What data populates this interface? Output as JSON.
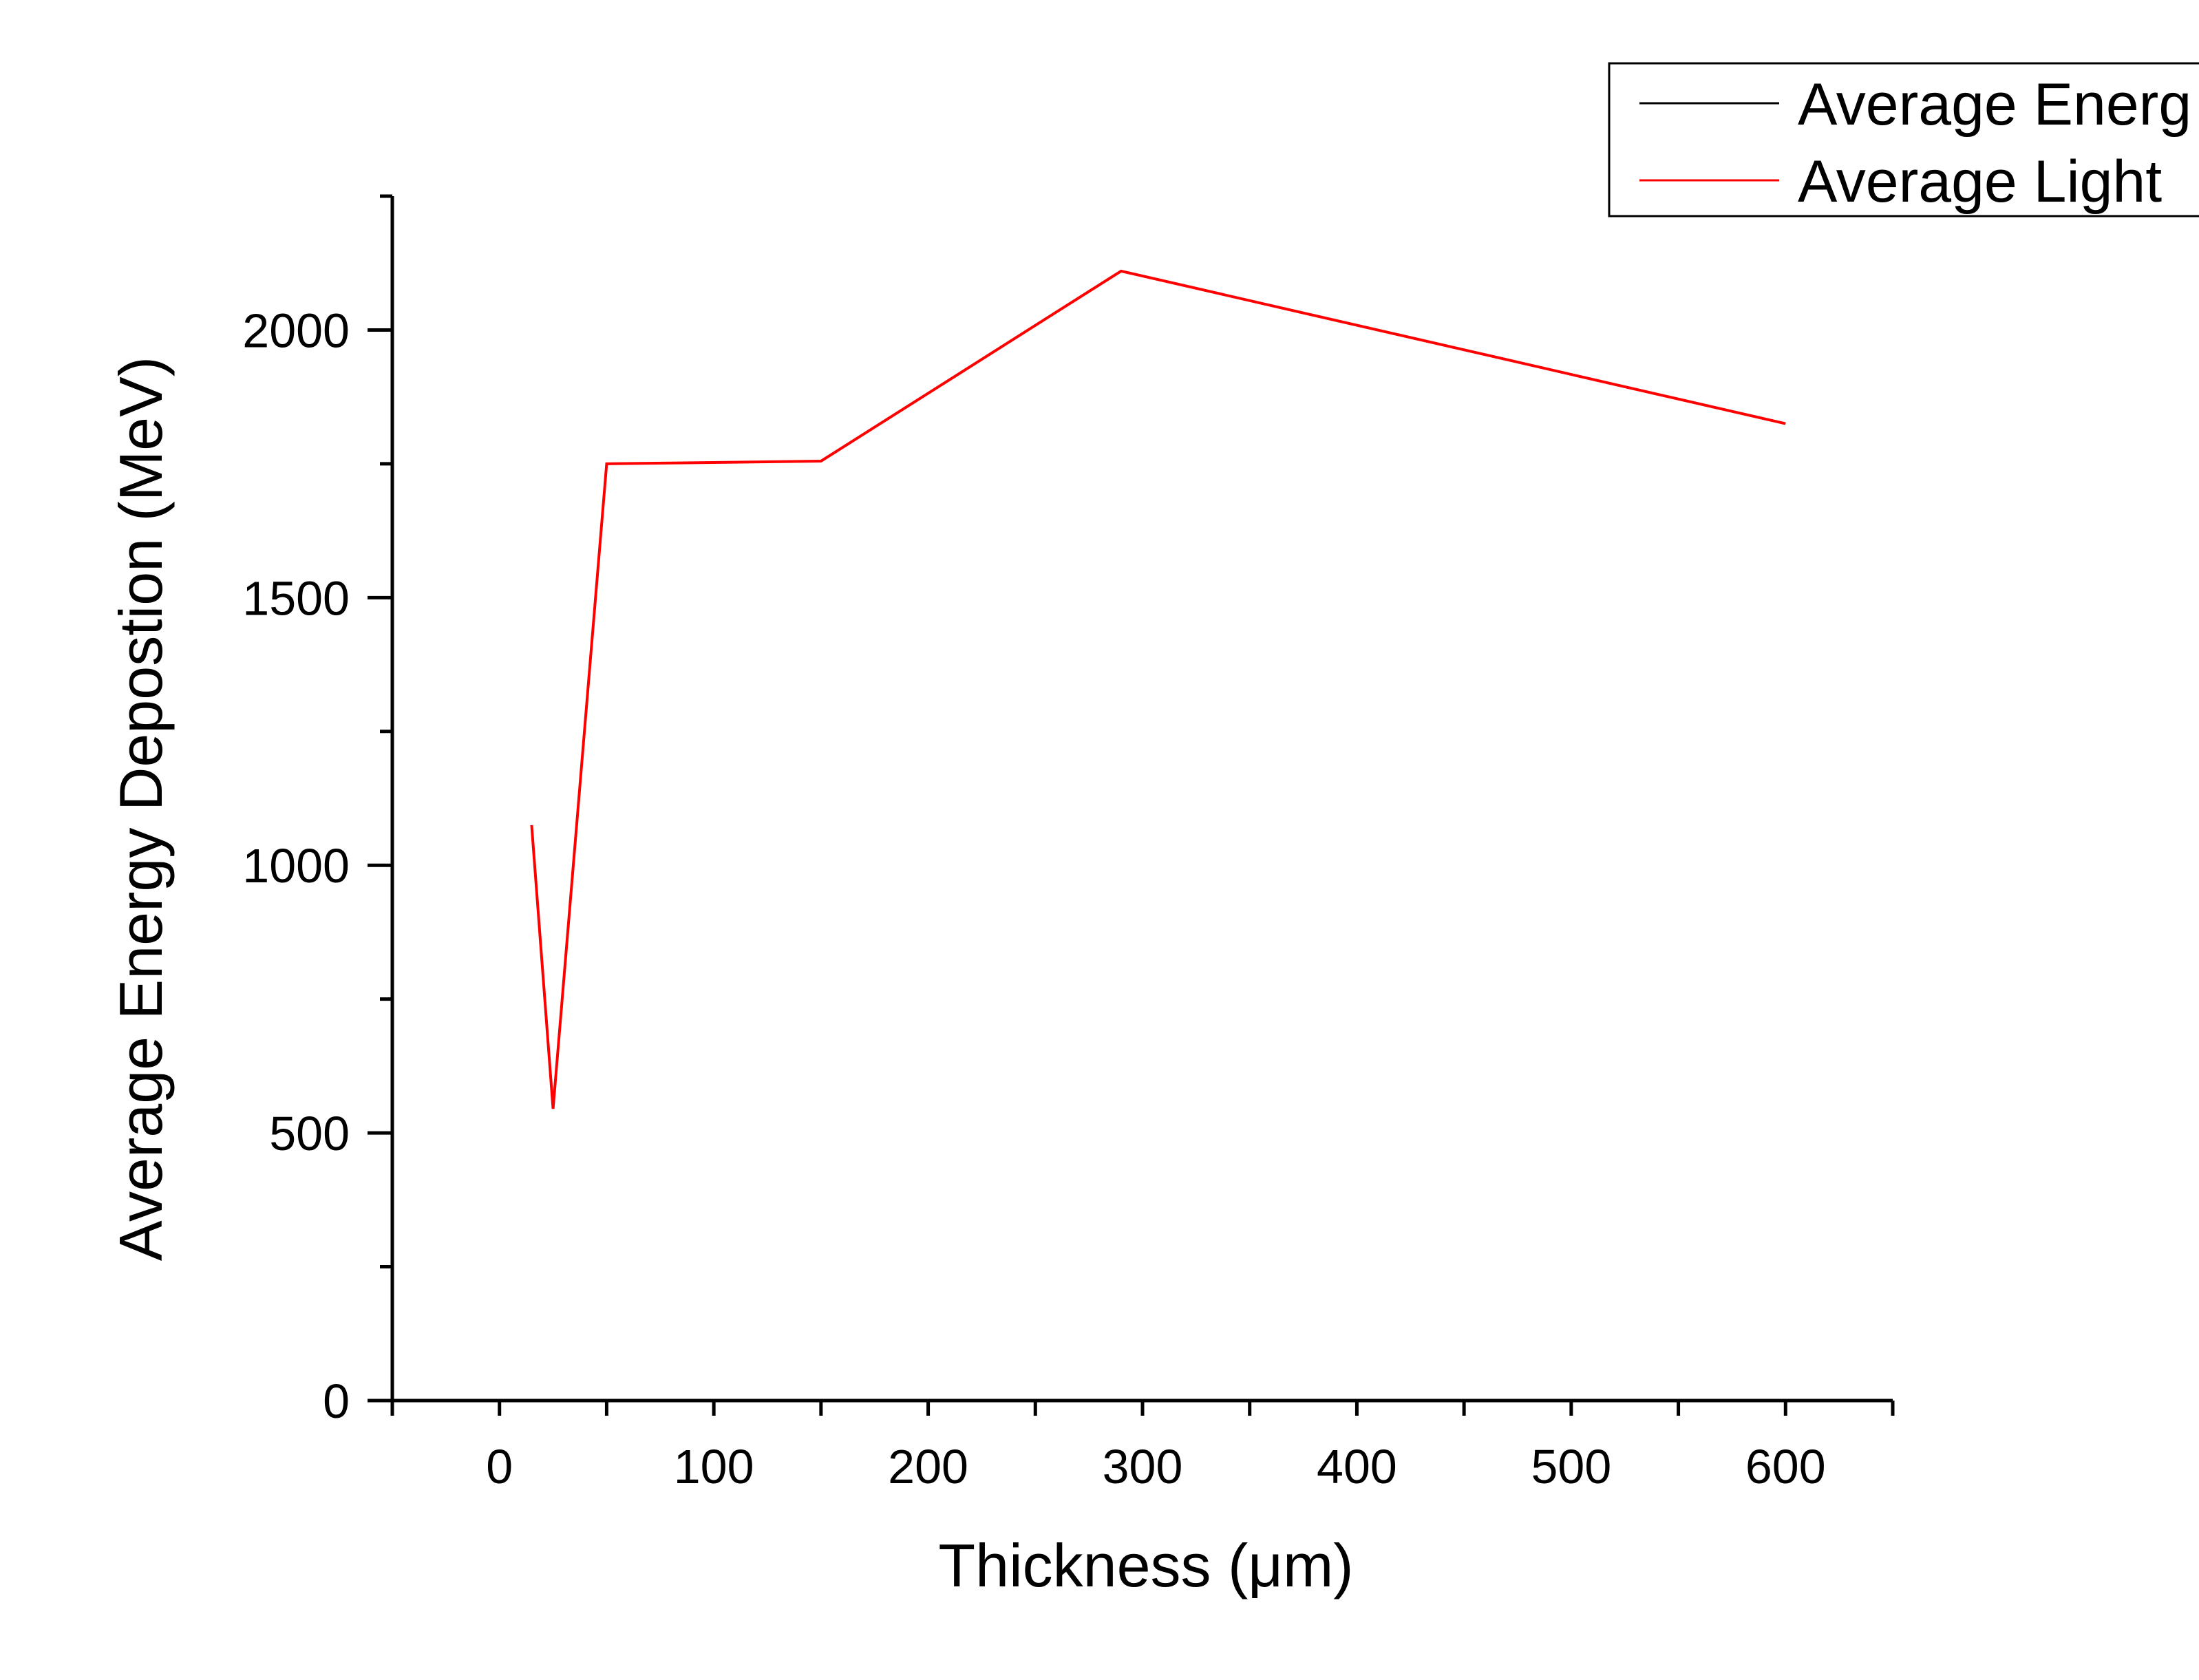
{
  "chart_data": {
    "type": "line",
    "title": "",
    "xlabel": "Thickness (μm)",
    "ylabel": "Average Energy Depostion (MeV)",
    "xlim": [
      -50,
      650
    ],
    "ylim": [
      0,
      2250
    ],
    "x_ticks": [
      0,
      100,
      200,
      300,
      400,
      500,
      600
    ],
    "y_ticks": [
      0,
      500,
      1000,
      1500,
      2000
    ],
    "grid": false,
    "legend_position": "top-right",
    "series": [
      {
        "name": "Average Energ",
        "color": "#000000",
        "x": [
          15,
          25,
          50,
          150,
          290,
          600
        ],
        "y": [
          0,
          0,
          0,
          0,
          0,
          0
        ]
      },
      {
        "name": "Average Light",
        "color": "#ff0000",
        "x": [
          15,
          25,
          50,
          150,
          290,
          600
        ],
        "y": [
          1075,
          545,
          1750,
          1755,
          2110,
          1825
        ]
      }
    ]
  }
}
